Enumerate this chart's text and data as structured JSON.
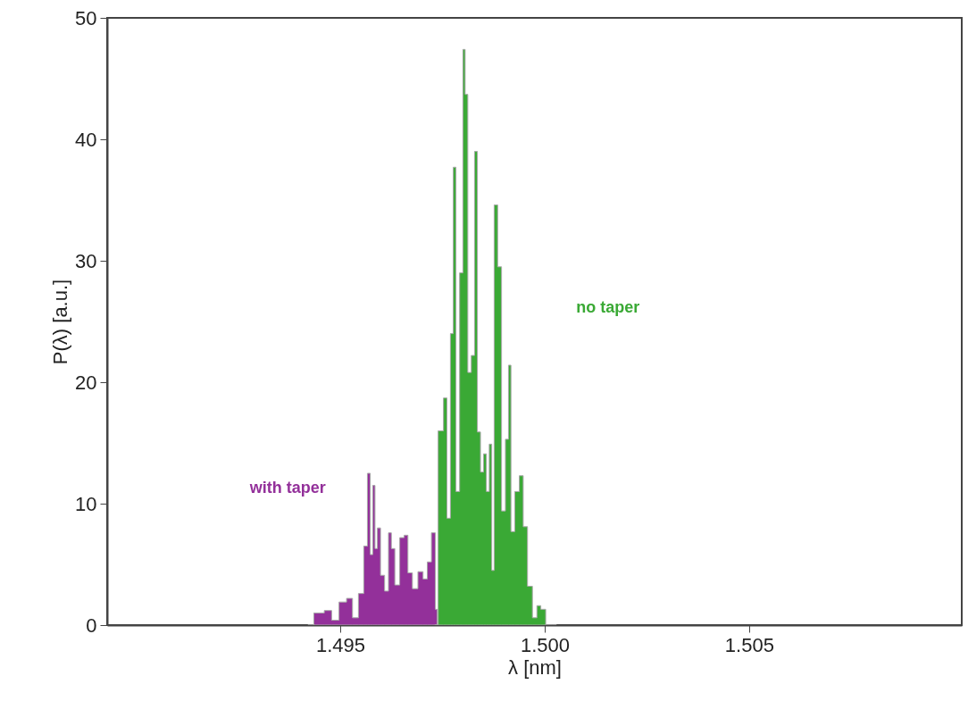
{
  "chart_data": {
    "type": "area",
    "xlabel": "λ [nm]",
    "ylabel": "P(λ) [a.u.]",
    "xlim": [
      1.4893,
      1.5102
    ],
    "ylim": [
      0,
      50
    ],
    "xticks": [
      1.495,
      {
        "value": 1.5,
        "label": "1.500"
      },
      1.505
    ],
    "yticks": [
      0,
      10,
      20,
      30,
      40,
      50
    ],
    "grid": false,
    "series": [
      {
        "name": "with taper",
        "color": "#93309a",
        "x": [
          1.49421,
          1.4945,
          1.49472,
          1.49486,
          1.49508,
          1.49523,
          1.49537,
          1.49552,
          1.49563,
          1.4957,
          1.49577,
          1.49582,
          1.49588,
          1.49594,
          1.49603,
          1.49614,
          1.49622,
          1.49628,
          1.49639,
          1.49652,
          1.49661,
          1.4967,
          1.49683,
          1.49697,
          1.49708,
          1.49718,
          1.49728,
          1.49737
        ],
        "values": [
          0,
          1.0,
          1.2,
          0.4,
          1.9,
          2.2,
          0.6,
          2.6,
          6.5,
          12.5,
          5.8,
          11.5,
          6.3,
          8.0,
          4.1,
          2.8,
          7.6,
          6.3,
          3.3,
          7.2,
          7.4,
          4.3,
          3.0,
          4.4,
          3.8,
          5.2,
          7.6,
          1.3
        ]
      },
      {
        "name": "no taper",
        "color": "#3aa935",
        "x": [
          1.49731,
          1.49748,
          1.49757,
          1.49765,
          1.49774,
          1.49779,
          1.49787,
          1.49797,
          1.49803,
          1.49808,
          1.49816,
          1.49825,
          1.49832,
          1.49839,
          1.49847,
          1.49854,
          1.49861,
          1.49868,
          1.49873,
          1.4988,
          1.4989,
          1.49899,
          1.49909,
          1.49914,
          1.49921,
          1.49933,
          1.49943,
          1.49952,
          1.49964,
          1.49976,
          1.49986,
          1.49995,
          1.5001,
          1.50029
        ],
        "values": [
          0,
          16,
          18.7,
          8.8,
          24,
          37.7,
          11,
          29,
          47.4,
          43.7,
          20.8,
          22.2,
          39,
          15.9,
          12.6,
          14.1,
          11,
          14.9,
          4.5,
          34.6,
          29.5,
          9.4,
          15.3,
          21.4,
          7.7,
          11,
          12.3,
          8.1,
          3.2,
          0.6,
          1.6,
          1.3,
          0,
          0
        ]
      }
    ]
  }
}
